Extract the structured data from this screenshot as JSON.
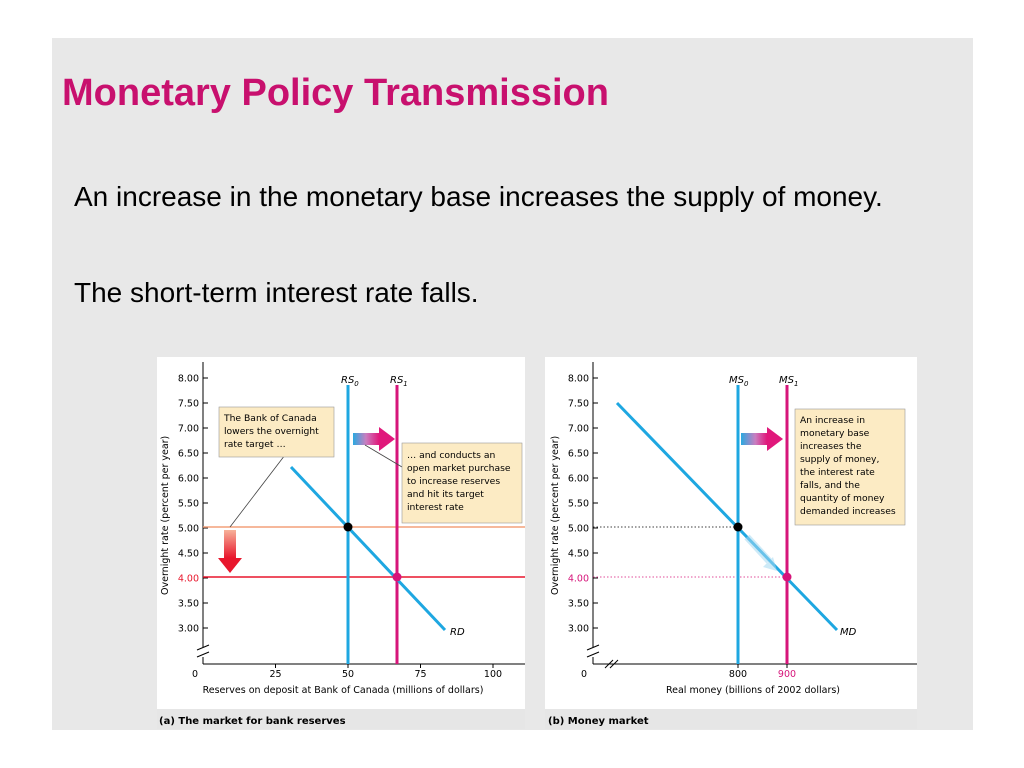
{
  "slide": {
    "title": "Monetary Policy Transmission",
    "bullets": [
      "An increase in the monetary base increases the supply of money.",
      "The short-term interest rate falls."
    ]
  },
  "colors": {
    "title": "#c8106e",
    "curve": "#1ea7e1",
    "magenta": "#d6157a",
    "red": "#e8172d",
    "orange_line": "#f4a07a",
    "note_bg": "#fcebc4"
  },
  "chart_data": [
    {
      "type": "line",
      "panel_caption": "(a) The market for bank reserves",
      "xlabel": "Reserves on deposit at Bank of Canada (millions of dollars)",
      "ylabel": "Overnight rate (percent per year)",
      "xlim": [
        0,
        110
      ],
      "ylim": [
        2.5,
        8.25
      ],
      "x_ticks": [
        "0",
        "25",
        "50",
        "75",
        "100"
      ],
      "y_ticks": [
        "8.00",
        "7.50",
        "7.00",
        "6.50",
        "6.00",
        "5.50",
        "5.00",
        "4.50",
        "4.00",
        "3.50",
        "3.00"
      ],
      "series": [
        {
          "name": "RD",
          "kind": "demand",
          "points": [
            [
              30,
              6.22
            ],
            [
              83,
              2.97
            ]
          ]
        },
        {
          "name": "RS0",
          "kind": "vertical",
          "x": 50
        },
        {
          "name": "RS1",
          "kind": "vertical",
          "x": 66
        }
      ],
      "target_rates": [
        5.0,
        4.0
      ],
      "equilibria": [
        [
          50,
          5.0
        ],
        [
          66,
          4.0
        ]
      ],
      "annotations": [
        "The Bank of Canada lowers the overnight rate target …",
        "… and conducts an open market purchase to increase reserves and hit its target interest rate"
      ]
    },
    {
      "type": "line",
      "panel_caption": "(b) Money market",
      "xlabel": "Real money (billions of 2002 dollars)",
      "ylabel": "Overnight rate (percent per year)",
      "xlim": [
        0,
        1
      ],
      "ylim": [
        2.5,
        8.25
      ],
      "x_tick_labels": [
        "800",
        "900"
      ],
      "y_ticks": [
        "8.00",
        "7.50",
        "7.00",
        "6.50",
        "6.00",
        "5.50",
        "5.00",
        "4.50",
        "4.00",
        "3.50",
        "3.00"
      ],
      "series": [
        {
          "name": "MD",
          "kind": "demand"
        },
        {
          "name": "MS0",
          "kind": "vertical",
          "x": 800
        },
        {
          "name": "MS1",
          "kind": "vertical",
          "x": 900
        }
      ],
      "equilibria": [
        [
          800,
          5.0
        ],
        [
          900,
          4.0
        ]
      ],
      "annotations": [
        "An increase in monetary base increases the supply of money, the interest rate falls, and the quantity of money demanded increases"
      ]
    }
  ]
}
